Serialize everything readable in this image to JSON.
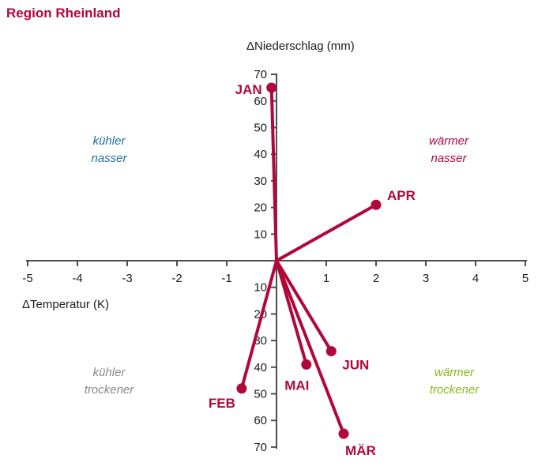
{
  "chart_data": {
    "type": "scatter",
    "title": "Region Rheinland",
    "xlabel": "ΔTemperatur (K)",
    "ylabel": "ΔNiederschlag (mm)",
    "xlim": [
      -5,
      5
    ],
    "ylim": [
      -70,
      70
    ],
    "x_ticks": [
      "-5",
      "-4",
      "-3",
      "-2",
      "-1",
      "1",
      "2",
      "3",
      "4",
      "5"
    ],
    "y_ticks_positive": [
      "10",
      "20",
      "30",
      "40",
      "50",
      "60",
      "70"
    ],
    "y_ticks_negative": [
      "10",
      "20",
      "30",
      "40",
      "50",
      "60",
      "70"
    ],
    "series": [
      {
        "color": "#b2073b",
        "points": [
          {
            "label": "JAN",
            "x": -0.1,
            "y": 65
          },
          {
            "label": "FEB",
            "x": -0.7,
            "y": -48
          },
          {
            "label": "MÄR",
            "x": 1.35,
            "y": -65
          },
          {
            "label": "APR",
            "x": 2.0,
            "y": 21
          },
          {
            "label": "MAI",
            "x": 0.6,
            "y": -39
          },
          {
            "label": "JUN",
            "x": 1.1,
            "y": -34
          }
        ]
      }
    ],
    "quadrants": [
      {
        "id": "tl",
        "lines": [
          "kühler",
          "nasser"
        ],
        "color": "#1f6fa8"
      },
      {
        "id": "tr",
        "lines": [
          "wärmer",
          "nasser"
        ],
        "color": "#b2073b"
      },
      {
        "id": "bl",
        "lines": [
          "kühler",
          "trockener"
        ],
        "color": "#8a8a8a"
      },
      {
        "id": "br",
        "lines": [
          "wärmer",
          "trockener"
        ],
        "color": "#8ab81a"
      }
    ],
    "colors": {
      "axis": "#4d4d4d",
      "accent": "#b2073b"
    }
  }
}
